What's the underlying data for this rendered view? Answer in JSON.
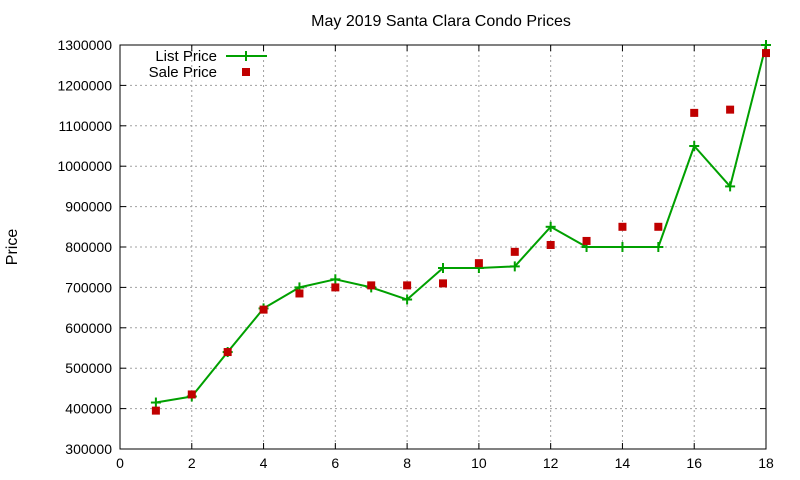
{
  "chart_data": {
    "type": "line",
    "title": "May 2019 Santa Clara Condo Prices",
    "xlabel": "",
    "ylabel": "Price",
    "xlim": [
      0,
      18
    ],
    "ylim": [
      300000,
      1300000
    ],
    "x_ticks": [
      "0",
      "2",
      "4",
      "6",
      "8",
      "10",
      "12",
      "14",
      "16",
      "18"
    ],
    "y_ticks": [
      "300000",
      "400000",
      "500000",
      "600000",
      "700000",
      "800000",
      "900000",
      "1000000",
      "1100000",
      "1200000",
      "1300000"
    ],
    "grid": true,
    "legend_position": "top-left",
    "series": [
      {
        "name": "List Price",
        "style": "line+points",
        "marker": "plus",
        "color": "#00a000",
        "x": [
          1,
          2,
          3,
          4,
          5,
          6,
          7,
          8,
          9,
          10,
          11,
          12,
          13,
          14,
          15,
          16,
          17,
          18
        ],
        "y": [
          415000,
          430000,
          540000,
          648000,
          700000,
          720000,
          700000,
          670000,
          748000,
          748000,
          752000,
          850000,
          800000,
          800000,
          800000,
          1050000,
          950000,
          1300000
        ]
      },
      {
        "name": "Sale Price",
        "style": "points",
        "marker": "square",
        "color": "#c00000",
        "x": [
          1,
          2,
          3,
          4,
          5,
          6,
          7,
          8,
          9,
          10,
          11,
          12,
          13,
          14,
          15,
          16,
          17,
          18
        ],
        "y": [
          395000,
          435000,
          540000,
          645000,
          685000,
          700000,
          705000,
          705000,
          710000,
          760000,
          788000,
          805000,
          815000,
          850000,
          850000,
          1132000,
          1140000,
          1280000
        ]
      }
    ]
  }
}
